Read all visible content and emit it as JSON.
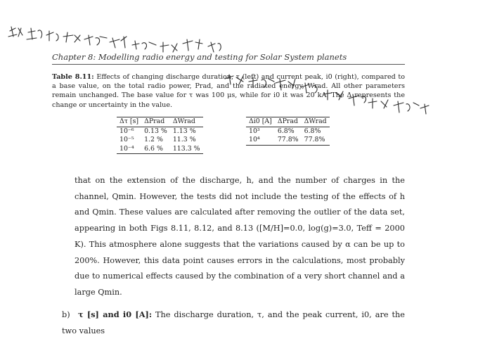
{
  "header": {
    "text": "Chapter 8: Modelling radio energy and testing for Solar System planets"
  },
  "table_caption": {
    "label": "Table 8.11:",
    "text": "Effects of changing discharge duration, τ (left) and current peak, i0 (right), compared to a base value, on the total radio power, Prad, and the radiated energy, Wrad. All other parameters remain unchanged. The base value for τ was 100 μs, while for i0 it was 20 kA. The Δ represents the change or uncertainty in the value."
  },
  "table_left": {
    "headers": [
      "Δτ [s]",
      "ΔPrad",
      "ΔWrad"
    ],
    "rows": [
      [
        "10⁻⁶",
        "0.13 %",
        "1.13 %"
      ],
      [
        "10⁻⁵",
        "1.2 %",
        "11.3 %"
      ],
      [
        "10⁻⁴",
        "6.6 %",
        "113.3 %"
      ]
    ]
  },
  "table_right": {
    "headers": [
      "Δi0 [A]",
      "ΔPrad",
      "ΔWrad"
    ],
    "rows": [
      [
        "10³",
        "6.8%",
        "6.8%"
      ],
      [
        "10⁴",
        "77.8%",
        "77.8%"
      ]
    ]
  },
  "body_text": "that on the extension of the discharge, h, and the number of charges in the channel, Qmin. However, the tests did not include the testing of the effects of h and Qmin. These values are calculated after removing the outlier of the data set, appearing in both Figs 8.11, 8.12, and 8.13 ([M/H]=0.0, log(g)=3.0, Teff = 2000 K). This atmosphere alone suggests that the variations caused by α can be up to 200%. However, this data point causes errors in the calculations, most probably due to numerical effects caused by the combination of a very short channel and a large Qmin.",
  "list_item": {
    "marker": "b)",
    "heading": "τ [s] and i0 [A]:",
    "text": "The discharge duration, τ, and the peak current, i0, are the two values"
  },
  "scribble_color": "#2b2b2b"
}
